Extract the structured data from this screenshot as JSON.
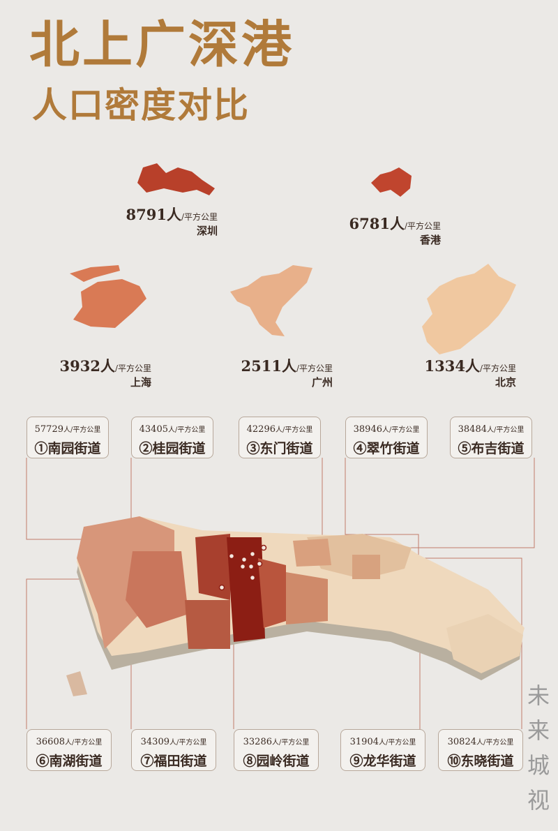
{
  "title": "北上广深港",
  "subtitle": "人口密度对比",
  "unit": "人/平方公里",
  "colors": {
    "title": "#b07a3a",
    "shenzhen": "#b8402a",
    "hongkong": "#c0452e",
    "shanghai": "#d97a55",
    "guangzhou": "#e8b08a",
    "beijing": "#f0c8a0"
  },
  "cities": [
    {
      "name": "深圳",
      "density": "8791"
    },
    {
      "name": "香港",
      "density": "6781"
    },
    {
      "name": "上海",
      "density": "3932"
    },
    {
      "name": "广州",
      "density": "2511"
    },
    {
      "name": "北京",
      "density": "1334"
    }
  ],
  "streets": [
    {
      "rank": "①",
      "name": "南园街道",
      "density": "57729"
    },
    {
      "rank": "②",
      "name": "桂园街道",
      "density": "43405"
    },
    {
      "rank": "③",
      "name": "东门街道",
      "density": "42296"
    },
    {
      "rank": "④",
      "name": "翠竹街道",
      "density": "38946"
    },
    {
      "rank": "⑤",
      "name": "布吉街道",
      "density": "38484"
    },
    {
      "rank": "⑥",
      "name": "南湖街道",
      "density": "36608"
    },
    {
      "rank": "⑦",
      "name": "福田街道",
      "density": "34309"
    },
    {
      "rank": "⑧",
      "name": "园岭街道",
      "density": "33286"
    },
    {
      "rank": "⑨",
      "name": "龙华街道",
      "density": "31904"
    },
    {
      "rank": "⑩",
      "name": "东晓街道",
      "density": "30824"
    }
  ],
  "watermark": "未来城视"
}
